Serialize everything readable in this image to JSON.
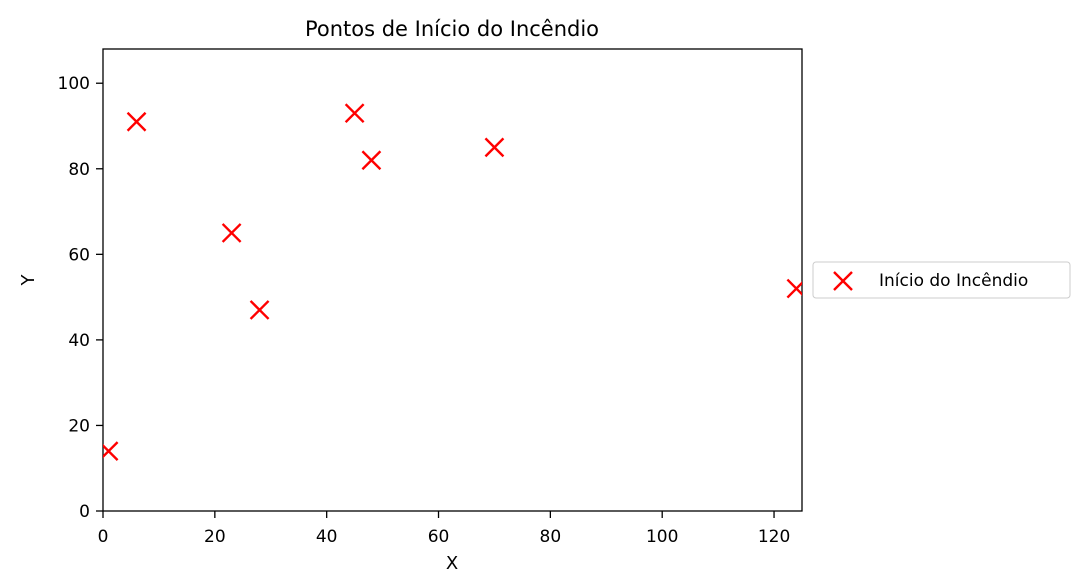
{
  "chart_data": {
    "type": "scatter",
    "title": "Pontos de Início do Incêndio",
    "xlabel": "X",
    "ylabel": "Y",
    "xlim": [
      0,
      125
    ],
    "ylim": [
      0,
      108
    ],
    "xticks": [
      0,
      20,
      40,
      60,
      80,
      100,
      120
    ],
    "yticks": [
      0,
      20,
      40,
      60,
      80,
      100
    ],
    "grid": false,
    "legend_position": "center-right-outside",
    "series": [
      {
        "name": "Início do Incêndio",
        "marker": "x",
        "color": "#ff0000",
        "points": [
          {
            "x": 1,
            "y": 14
          },
          {
            "x": 6,
            "y": 91
          },
          {
            "x": 23,
            "y": 65
          },
          {
            "x": 28,
            "y": 47
          },
          {
            "x": 45,
            "y": 93
          },
          {
            "x": 48,
            "y": 82
          },
          {
            "x": 70,
            "y": 85
          },
          {
            "x": 124,
            "y": 52
          }
        ]
      }
    ]
  }
}
